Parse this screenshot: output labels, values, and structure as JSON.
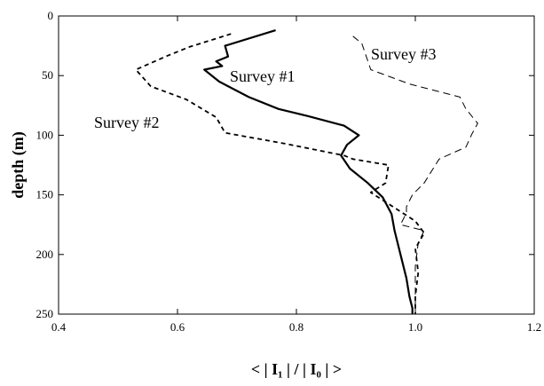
{
  "chart_data": {
    "type": "line",
    "xlabel": "< | I₁ | / | I₀ | >",
    "ylabel": "depth (m)",
    "xlim": [
      0.4,
      1.2
    ],
    "ylim": [
      0,
      250
    ],
    "y_inverted": true,
    "x_ticks": [
      "0.4",
      "0.6",
      "0.8",
      "1.0",
      "1.2"
    ],
    "y_ticks": [
      "0",
      "50",
      "100",
      "150",
      "200",
      "250"
    ],
    "grid": false,
    "legend": "none",
    "series": [
      {
        "name": "Survey #1",
        "line_style": "solid",
        "color": "#000000",
        "points": [
          [
            0.765,
            12
          ],
          [
            0.68,
            25
          ],
          [
            0.685,
            34
          ],
          [
            0.665,
            38
          ],
          [
            0.675,
            42
          ],
          [
            0.645,
            45
          ],
          [
            0.67,
            55
          ],
          [
            0.72,
            68
          ],
          [
            0.77,
            78
          ],
          [
            0.82,
            84
          ],
          [
            0.88,
            92
          ],
          [
            0.905,
            100
          ],
          [
            0.885,
            108
          ],
          [
            0.875,
            117
          ],
          [
            0.89,
            128
          ],
          [
            0.92,
            140
          ],
          [
            0.945,
            152
          ],
          [
            0.96,
            166
          ],
          [
            0.965,
            180
          ],
          [
            0.975,
            200
          ],
          [
            0.985,
            220
          ],
          [
            0.99,
            235
          ],
          [
            0.995,
            245
          ],
          [
            0.995,
            250
          ]
        ]
      },
      {
        "name": "Survey #2",
        "line_style": "dashed",
        "color": "#000000",
        "points": [
          [
            0.69,
            15
          ],
          [
            0.62,
            26
          ],
          [
            0.6,
            30
          ],
          [
            0.58,
            34
          ],
          [
            0.53,
            45
          ],
          [
            0.555,
            59
          ],
          [
            0.615,
            70
          ],
          [
            0.665,
            85
          ],
          [
            0.68,
            98
          ],
          [
            0.78,
            107
          ],
          [
            0.88,
            117
          ],
          [
            0.895,
            120
          ],
          [
            0.955,
            125
          ],
          [
            0.95,
            140
          ],
          [
            0.925,
            148
          ],
          [
            1.0,
            172
          ],
          [
            1.015,
            182
          ],
          [
            1.0,
            195
          ],
          [
            1.005,
            215
          ],
          [
            1.0,
            235
          ],
          [
            1.0,
            250
          ]
        ]
      },
      {
        "name": "Survey #3",
        "line_style": "long-dashed",
        "color": "#000000",
        "points": [
          [
            0.895,
            17
          ],
          [
            0.91,
            23
          ],
          [
            0.925,
            45
          ],
          [
            0.99,
            57
          ],
          [
            1.075,
            68
          ],
          [
            1.085,
            78
          ],
          [
            1.105,
            90
          ],
          [
            1.095,
            99
          ],
          [
            1.085,
            110
          ],
          [
            1.04,
            120
          ],
          [
            1.015,
            140
          ],
          [
            0.995,
            150
          ],
          [
            0.985,
            160
          ],
          [
            0.985,
            165
          ],
          [
            0.975,
            175
          ],
          [
            1.015,
            180
          ],
          [
            1.005,
            190
          ],
          [
            1.0,
            210
          ],
          [
            1.0,
            230
          ],
          [
            1.0,
            250
          ]
        ]
      }
    ]
  }
}
